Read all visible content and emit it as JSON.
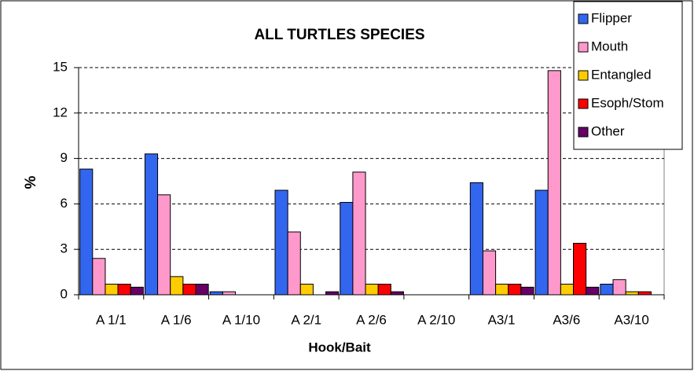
{
  "chart_data": {
    "type": "bar",
    "title": "ALL TURTLES SPECIES",
    "x_label": "Hook/Bait",
    "y_label": "%",
    "categories": [
      "A 1/1",
      "A 1/6",
      "A 1/10",
      "A 2/1",
      "A 2/6",
      "A 2/10",
      "A3/1",
      "A3/6",
      "A3/10"
    ],
    "series": [
      {
        "name": "Flipper",
        "color": "#3366ee",
        "values": [
          8.3,
          9.3,
          0.2,
          6.9,
          6.1,
          0,
          7.4,
          6.9,
          0.7
        ]
      },
      {
        "name": "Mouth",
        "color": "#ff99cc",
        "values": [
          2.4,
          6.6,
          0.2,
          4.15,
          8.1,
          0,
          2.9,
          14.8,
          1.0
        ]
      },
      {
        "name": "Entangled",
        "color": "#ffcc00",
        "values": [
          0.7,
          1.2,
          0,
          0.7,
          0.7,
          0,
          0.7,
          0.7,
          0.2
        ]
      },
      {
        "name": "Esoph/Stom",
        "color": "#ff0000",
        "values": [
          0.7,
          0.7,
          0,
          0,
          0.7,
          0,
          0.7,
          3.4,
          0.2
        ]
      },
      {
        "name": "Other",
        "color": "#660066",
        "values": [
          0.5,
          0.7,
          0,
          0.2,
          0.2,
          0,
          0.5,
          0.5,
          0
        ]
      }
    ],
    "ylim": [
      0,
      15
    ],
    "yticks": [
      0,
      3,
      6,
      9,
      12,
      15
    ],
    "grid": true,
    "legend": "top-right"
  }
}
